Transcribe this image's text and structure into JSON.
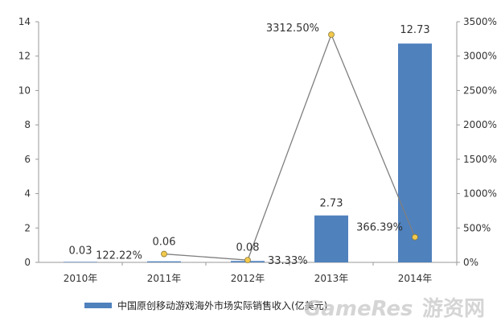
{
  "chart_data": {
    "type": "bar",
    "categories": [
      "2010年",
      "2011年",
      "2012年",
      "2013年",
      "2014年"
    ],
    "series": [
      {
        "name": "中国原创移动游戏海外市场实际销售收入(亿美元)",
        "type": "bar",
        "axis": "left",
        "color": "#4f81bd",
        "values": [
          0.03,
          0.06,
          0.08,
          2.73,
          12.73
        ],
        "labels": [
          "0.03",
          "0.06",
          "0.08",
          "2.73",
          "12.73"
        ]
      },
      {
        "type": "line",
        "axis": "right",
        "color": "#7f7f7f",
        "marker_color": "#f2c94c",
        "values": [
          null,
          122.22,
          33.33,
          3312.5,
          366.39
        ],
        "labels": [
          "",
          "122.22%",
          "33.33%",
          "3312.50%",
          "366.39%"
        ]
      }
    ],
    "y_left": {
      "ylim": [
        0,
        14
      ],
      "ticks": [
        "0",
        "2",
        "4",
        "6",
        "8",
        "10",
        "12",
        "14"
      ]
    },
    "y_right": {
      "ylim": [
        0,
        3500
      ],
      "ticks": [
        "0%",
        "500%",
        "1000%",
        "1500%",
        "2000%",
        "2500%",
        "3000%",
        "3500%"
      ]
    },
    "grid": false,
    "legend_position": "bottom"
  },
  "watermark": {
    "latin": "GameRes",
    "cn": "游资网"
  }
}
